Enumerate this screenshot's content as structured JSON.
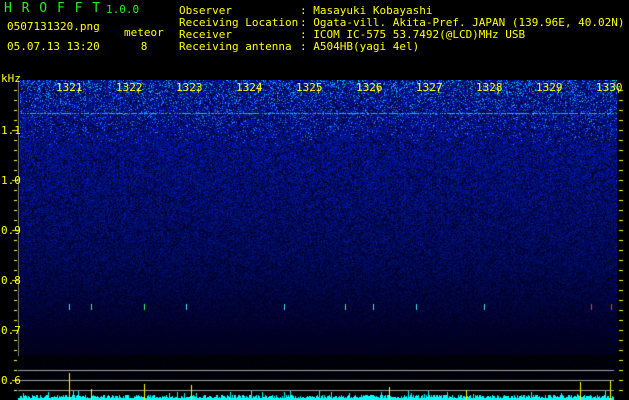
{
  "app": {
    "name": "H R O F F T",
    "version": "1.0.0"
  },
  "file": {
    "name": "0507131320.png",
    "datetime": "05.07.13 13:20"
  },
  "meteor": {
    "label": "meteor",
    "count": "8"
  },
  "info": [
    {
      "label": "Observer",
      "value": ": Masayuki Kobayashi"
    },
    {
      "label": "Receiving Location",
      "value": ": Ogata-vill. Akita-Pref. JAPAN (139.96E, 40.02N)"
    },
    {
      "label": "Receiver",
      "value": ": ICOM IC-575 53.7492(@LCD)MHz USB"
    },
    {
      "label": "Receiving antenna",
      "value": ": A504HB(yagi 4el)"
    }
  ],
  "axis": {
    "unit": "kHz",
    "freq_labels": [
      "1.1",
      "1.0",
      "0.9",
      "0.8",
      "0.7",
      "0.6"
    ],
    "time_labels": [
      "1321",
      "1322",
      "1323",
      "1324",
      "1325",
      "1326",
      "1327",
      "1328",
      "1329",
      "1330"
    ]
  },
  "colors": {
    "text": "#ffff00",
    "title": "#22ee22",
    "histogram": "#00ffff",
    "meteor_spike": "#ffff00",
    "grid": "#a0a0a0"
  }
}
